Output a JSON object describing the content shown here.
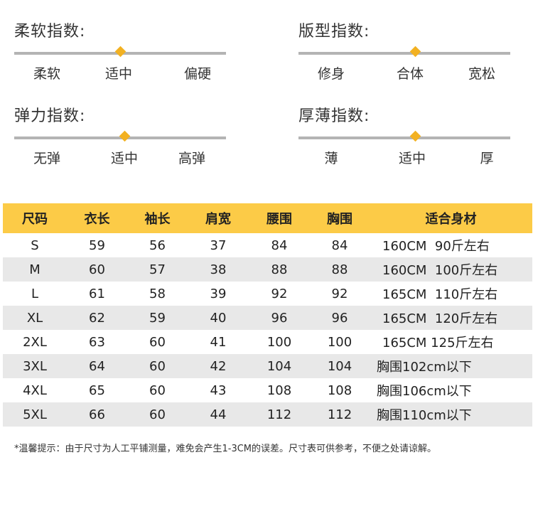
{
  "indices": [
    {
      "title": "柔软指数:",
      "labels": [
        "柔软",
        "适中",
        "偏硬"
      ],
      "level": 0.5
    },
    {
      "title": "版型指数:",
      "labels": [
        "修身",
        "合体",
        "宽松"
      ],
      "level": 0.55
    },
    {
      "title": "弹力指数:",
      "labels": [
        "无弹",
        "适中",
        "高弹"
      ],
      "level": 0.52
    },
    {
      "title": "厚薄指数:",
      "labels": [
        "薄",
        "适中",
        "厚"
      ],
      "level": 0.55
    }
  ],
  "size_table": {
    "headers": [
      "尺码",
      "衣长",
      "袖长",
      "肩宽",
      "腰围",
      "胸围",
      "适合身材"
    ],
    "rows": [
      [
        "S",
        "59",
        "56",
        "37",
        "84",
        "84",
        "160CM  90斤左右"
      ],
      [
        "M",
        "60",
        "57",
        "38",
        "88",
        "88",
        "160CM  100斤左右"
      ],
      [
        "L",
        "61",
        "58",
        "39",
        "92",
        "92",
        "165CM  110斤左右"
      ],
      [
        "XL",
        "62",
        "59",
        "40",
        "96",
        "96",
        "165CM  120斤左右"
      ],
      [
        "2XL",
        "63",
        "60",
        "41",
        "100",
        "100",
        "165CM 125斤左右"
      ],
      [
        "3XL",
        "64",
        "60",
        "42",
        "104",
        "104",
        "胸围102cm以下"
      ],
      [
        "4XL",
        "65",
        "60",
        "43",
        "108",
        "108",
        "胸围106cm以下"
      ],
      [
        "5XL",
        "66",
        "60",
        "44",
        "112",
        "112",
        "胸围110cm以下"
      ]
    ]
  },
  "tip": "*温馨提示：由于尺寸为人工平铺测量，难免会产生1-3CM的误差。尺寸表可供参考，不便之处请谅解。",
  "colors": {
    "accent": "#f2b122",
    "header_bg": "#fccb47",
    "track": "#b4b4b4",
    "alt_row": "#e8e8e8"
  }
}
